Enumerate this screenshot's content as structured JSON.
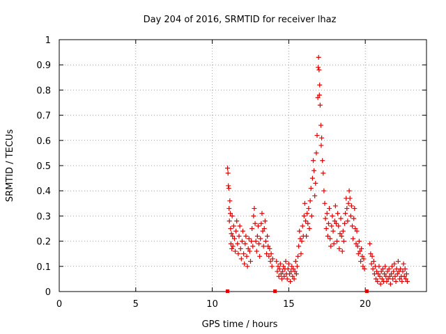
{
  "chart_data": {
    "type": "scatter",
    "title": "Day 204 of 2016, SRMTID for receiver lhaz",
    "xlabel": "GPS time / hours",
    "ylabel": "SRMTID / TECUs",
    "xlim": [
      0,
      24
    ],
    "ylim": [
      0,
      1
    ],
    "xticks": [
      0,
      5,
      10,
      15,
      20
    ],
    "yticks": [
      0,
      0.1,
      0.2,
      0.3,
      0.4,
      0.5,
      0.6,
      0.7,
      0.8,
      0.9,
      1
    ],
    "xtick_labels": [
      "0",
      "5",
      "10",
      "15",
      "20"
    ],
    "ytick_labels": [
      "0",
      "0.1",
      "0.2",
      "0.3",
      "0.4",
      "0.5",
      "0.6",
      "0.7",
      "0.8",
      "0.9",
      "1"
    ],
    "grid": true,
    "marker": "+",
    "color": "#e00000",
    "series": [
      {
        "name": "SRMTID",
        "points": [
          [
            11.0,
            0.49
          ],
          [
            11.03,
            0.47
          ],
          [
            11.05,
            0.42
          ],
          [
            11.08,
            0.41
          ],
          [
            11.1,
            0.33
          ],
          [
            11.12,
            0.28
          ],
          [
            11.15,
            0.36
          ],
          [
            11.18,
            0.31
          ],
          [
            11.2,
            0.25
          ],
          [
            11.22,
            0.19
          ],
          [
            11.25,
            0.23
          ],
          [
            11.28,
            0.17
          ],
          [
            11.3,
            0.3
          ],
          [
            11.33,
            0.22
          ],
          [
            11.35,
            0.18
          ],
          [
            11.4,
            0.26
          ],
          [
            11.45,
            0.21
          ],
          [
            11.5,
            0.16
          ],
          [
            11.55,
            0.24
          ],
          [
            11.6,
            0.28
          ],
          [
            11.65,
            0.19
          ],
          [
            11.7,
            0.15
          ],
          [
            11.75,
            0.22
          ],
          [
            11.8,
            0.26
          ],
          [
            11.85,
            0.17
          ],
          [
            11.9,
            0.13
          ],
          [
            11.95,
            0.2
          ],
          [
            12.0,
            0.24
          ],
          [
            12.05,
            0.15
          ],
          [
            12.1,
            0.11
          ],
          [
            12.15,
            0.19
          ],
          [
            12.2,
            0.22
          ],
          [
            12.25,
            0.14
          ],
          [
            12.3,
            0.1
          ],
          [
            12.35,
            0.17
          ],
          [
            12.4,
            0.21
          ],
          [
            12.45,
            0.16
          ],
          [
            12.5,
            0.12
          ],
          [
            12.55,
            0.2
          ],
          [
            12.6,
            0.25
          ],
          [
            12.65,
            0.18
          ],
          [
            12.7,
            0.3
          ],
          [
            12.75,
            0.33
          ],
          [
            12.8,
            0.27
          ],
          [
            12.85,
            0.2
          ],
          [
            12.9,
            0.16
          ],
          [
            12.95,
            0.22
          ],
          [
            13.0,
            0.26
          ],
          [
            13.05,
            0.19
          ],
          [
            13.1,
            0.14
          ],
          [
            13.15,
            0.21
          ],
          [
            13.2,
            0.27
          ],
          [
            13.25,
            0.31
          ],
          [
            13.3,
            0.24
          ],
          [
            13.35,
            0.18
          ],
          [
            13.4,
            0.25
          ],
          [
            13.45,
            0.28
          ],
          [
            13.5,
            0.2
          ],
          [
            13.55,
            0.15
          ],
          [
            13.6,
            0.22
          ],
          [
            13.65,
            0.18
          ],
          [
            13.7,
            0.14
          ],
          [
            13.75,
            0.17
          ],
          [
            13.8,
            0.12
          ],
          [
            13.85,
            0.15
          ],
          [
            13.9,
            0.1
          ],
          [
            13.95,
            0.13
          ],
          [
            14.2,
            0.12
          ],
          [
            14.25,
            0.08
          ],
          [
            14.3,
            0.1
          ],
          [
            14.35,
            0.06
          ],
          [
            14.4,
            0.09
          ],
          [
            14.45,
            0.11
          ],
          [
            14.5,
            0.07
          ],
          [
            14.55,
            0.05
          ],
          [
            14.6,
            0.08
          ],
          [
            14.65,
            0.1
          ],
          [
            14.7,
            0.06
          ],
          [
            14.75,
            0.09
          ],
          [
            14.8,
            0.12
          ],
          [
            14.85,
            0.07
          ],
          [
            14.9,
            0.05
          ],
          [
            14.95,
            0.09
          ],
          [
            15.0,
            0.11
          ],
          [
            15.05,
            0.07
          ],
          [
            15.1,
            0.04
          ],
          [
            15.15,
            0.08
          ],
          [
            15.2,
            0.1
          ],
          [
            15.25,
            0.06
          ],
          [
            15.3,
            0.09
          ],
          [
            15.35,
            0.05
          ],
          [
            15.4,
            0.08
          ],
          [
            15.45,
            0.12
          ],
          [
            15.5,
            0.07
          ],
          [
            15.55,
            0.1
          ],
          [
            15.6,
            0.14
          ],
          [
            15.65,
            0.18
          ],
          [
            15.7,
            0.24
          ],
          [
            15.75,
            0.21
          ],
          [
            15.8,
            0.15
          ],
          [
            15.85,
            0.2
          ],
          [
            15.9,
            0.26
          ],
          [
            15.95,
            0.22
          ],
          [
            16.0,
            0.3
          ],
          [
            16.05,
            0.35
          ],
          [
            16.1,
            0.28
          ],
          [
            16.15,
            0.22
          ],
          [
            16.2,
            0.31
          ],
          [
            16.25,
            0.27
          ],
          [
            16.3,
            0.33
          ],
          [
            16.35,
            0.25
          ],
          [
            16.4,
            0.36
          ],
          [
            16.45,
            0.41
          ],
          [
            16.5,
            0.3
          ],
          [
            16.55,
            0.45
          ],
          [
            16.6,
            0.52
          ],
          [
            16.65,
            0.48
          ],
          [
            16.7,
            0.38
          ],
          [
            16.75,
            0.43
          ],
          [
            16.8,
            0.55
          ],
          [
            16.85,
            0.62
          ],
          [
            16.9,
            0.77
          ],
          [
            16.92,
            0.89
          ],
          [
            16.95,
            0.93
          ],
          [
            16.98,
            0.88
          ],
          [
            17.0,
            0.78
          ],
          [
            17.02,
            0.82
          ],
          [
            17.05,
            0.74
          ],
          [
            17.1,
            0.66
          ],
          [
            17.12,
            0.58
          ],
          [
            17.15,
            0.61
          ],
          [
            17.2,
            0.52
          ],
          [
            17.25,
            0.47
          ],
          [
            17.3,
            0.4
          ],
          [
            17.35,
            0.35
          ],
          [
            17.4,
            0.29
          ],
          [
            17.45,
            0.25
          ],
          [
            17.5,
            0.31
          ],
          [
            17.55,
            0.22
          ],
          [
            17.6,
            0.27
          ],
          [
            17.65,
            0.33
          ],
          [
            17.7,
            0.21
          ],
          [
            17.75,
            0.18
          ],
          [
            17.8,
            0.26
          ],
          [
            17.85,
            0.3
          ],
          [
            17.9,
            0.24
          ],
          [
            17.95,
            0.19
          ],
          [
            18.0,
            0.28
          ],
          [
            18.05,
            0.34
          ],
          [
            18.1,
            0.27
          ],
          [
            18.15,
            0.2
          ],
          [
            18.2,
            0.31
          ],
          [
            18.25,
            0.26
          ],
          [
            18.3,
            0.17
          ],
          [
            18.35,
            0.23
          ],
          [
            18.4,
            0.29
          ],
          [
            18.45,
            0.22
          ],
          [
            18.5,
            0.16
          ],
          [
            18.55,
            0.24
          ],
          [
            18.6,
            0.2
          ],
          [
            18.65,
            0.27
          ],
          [
            18.7,
            0.31
          ],
          [
            18.75,
            0.37
          ],
          [
            18.8,
            0.33
          ],
          [
            18.85,
            0.28
          ],
          [
            18.9,
            0.35
          ],
          [
            18.95,
            0.4
          ],
          [
            19.0,
            0.37
          ],
          [
            19.05,
            0.3
          ],
          [
            19.1,
            0.34
          ],
          [
            19.15,
            0.26
          ],
          [
            19.2,
            0.21
          ],
          [
            19.25,
            0.29
          ],
          [
            19.3,
            0.33
          ],
          [
            19.35,
            0.25
          ],
          [
            19.4,
            0.19
          ],
          [
            19.45,
            0.24
          ],
          [
            19.5,
            0.18
          ],
          [
            19.55,
            0.15
          ],
          [
            19.6,
            0.2
          ],
          [
            19.65,
            0.16
          ],
          [
            19.7,
            0.12
          ],
          [
            19.75,
            0.17
          ],
          [
            19.8,
            0.14
          ],
          [
            19.85,
            0.1
          ],
          [
            19.9,
            0.13
          ],
          [
            19.95,
            0.09
          ],
          [
            20.3,
            0.19
          ],
          [
            20.35,
            0.15
          ],
          [
            20.4,
            0.11
          ],
          [
            20.45,
            0.14
          ],
          [
            20.5,
            0.09
          ],
          [
            20.55,
            0.12
          ],
          [
            20.6,
            0.07
          ],
          [
            20.65,
            0.1
          ],
          [
            20.7,
            0.05
          ],
          [
            20.75,
            0.08
          ],
          [
            20.8,
            0.04
          ],
          [
            20.85,
            0.07
          ],
          [
            20.9,
            0.1
          ],
          [
            20.95,
            0.06
          ],
          [
            21.0,
            0.03
          ],
          [
            21.05,
            0.08
          ],
          [
            21.1,
            0.05
          ],
          [
            21.15,
            0.09
          ],
          [
            21.2,
            0.04
          ],
          [
            21.25,
            0.07
          ],
          [
            21.3,
            0.1
          ],
          [
            21.35,
            0.06
          ],
          [
            21.4,
            0.04
          ],
          [
            21.45,
            0.08
          ],
          [
            21.5,
            0.05
          ],
          [
            21.55,
            0.09
          ],
          [
            21.6,
            0.06
          ],
          [
            21.65,
            0.03
          ],
          [
            21.7,
            0.07
          ],
          [
            21.75,
            0.1
          ],
          [
            21.8,
            0.05
          ],
          [
            21.85,
            0.08
          ],
          [
            21.9,
            0.11
          ],
          [
            21.95,
            0.06
          ],
          [
            22.0,
            0.04
          ],
          [
            22.05,
            0.09
          ],
          [
            22.1,
            0.07
          ],
          [
            22.15,
            0.12
          ],
          [
            22.2,
            0.08
          ],
          [
            22.25,
            0.05
          ],
          [
            22.3,
            0.09
          ],
          [
            22.35,
            0.06
          ],
          [
            22.4,
            0.04
          ],
          [
            22.45,
            0.08
          ],
          [
            22.5,
            0.11
          ],
          [
            22.55,
            0.06
          ],
          [
            22.6,
            0.09
          ],
          [
            22.65,
            0.05
          ],
          [
            22.7,
            0.07
          ],
          [
            22.75,
            0.04
          ]
        ]
      },
      {
        "name": "gap markers",
        "points": [
          [
            11.0,
            0
          ],
          [
            14.1,
            0
          ],
          [
            20.1,
            0
          ]
        ]
      }
    ]
  }
}
